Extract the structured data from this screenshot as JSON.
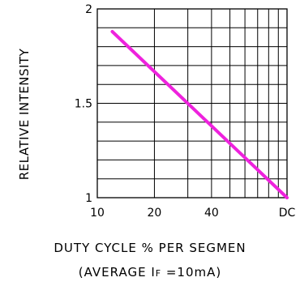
{
  "chart_data": {
    "type": "line",
    "ylabel": "RELATIVE INTENSITY",
    "xlabel_line1": "DUTY CYCLE % PER SEGMEN",
    "xlabel_line2_prefix": "(AVERAGE I",
    "xlabel_line2_subscript": "F",
    "xlabel_line2_suffix": " =10mA)",
    "x_scale": "log",
    "x_ticks": [
      {
        "label": "10",
        "value": 10
      },
      {
        "label": "20",
        "value": 20
      },
      {
        "label": "40",
        "value": 40
      },
      {
        "label": "DC",
        "value": 100
      }
    ],
    "y_ticks": [
      {
        "label": "1",
        "value": 1.0
      },
      {
        "label": "1.5",
        "value": 1.5
      },
      {
        "label": "2",
        "value": 2.0
      }
    ],
    "xlim": [
      10,
      100
    ],
    "ylim": [
      1.0,
      2.0
    ],
    "grid": true,
    "series": [
      {
        "color": "#ee22dd",
        "x": [
          12,
          100
        ],
        "y": [
          1.88,
          1.0
        ]
      }
    ]
  }
}
